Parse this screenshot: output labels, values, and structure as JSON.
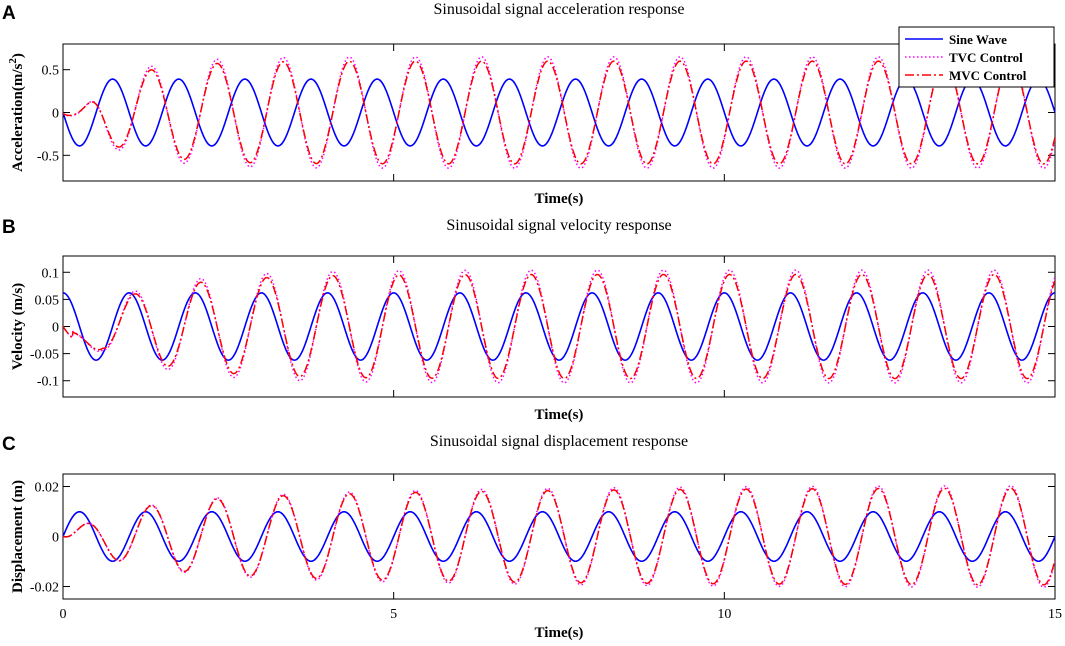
{
  "chart_data": [
    {
      "type": "line",
      "panel": "A",
      "title": "Sinusoidal signal acceleration response",
      "xlabel": "Time(s)",
      "ylabel": "Acceleration(m/s^2)",
      "xlim": [
        0,
        15
      ],
      "ylim": [
        -0.8,
        0.8
      ],
      "xticks": [
        0,
        5,
        10,
        15
      ],
      "xtick_labels": [],
      "yticks": [
        -0.5,
        0,
        0.5
      ],
      "ytick_labels": [
        "-0.5",
        "0",
        "0.5"
      ],
      "grid": false,
      "legend": "top-right",
      "series": [
        {
          "name": "Sine Wave",
          "color": "#0000ff",
          "style": "solid",
          "amplitude": 0.39,
          "frequency_hz": 1.0,
          "phase": "-sin"
        },
        {
          "name": "TVC Control",
          "color": "#ff00ff",
          "style": "dotted",
          "steady_amplitude": 0.65,
          "frequency_hz": 1.0,
          "start_dip": -0.17,
          "start_dip_time": 0.3
        },
        {
          "name": "MVC Control",
          "color": "#ff0000",
          "style": "dashdot",
          "steady_amplitude": 0.6,
          "frequency_hz": 1.0,
          "start_dip": -0.15,
          "start_dip_time": 0.3
        }
      ]
    },
    {
      "type": "line",
      "panel": "B",
      "title": "Sinusoidal signal velocity response",
      "xlabel": "Time(s)",
      "ylabel": "Velocity (m/s)",
      "xlim": [
        0,
        15
      ],
      "ylim": [
        -0.13,
        0.13
      ],
      "xticks": [
        0,
        5,
        10,
        15
      ],
      "xtick_labels": [],
      "yticks": [
        -0.1,
        -0.05,
        0,
        0.05,
        0.1
      ],
      "ytick_labels": [
        "-0.1",
        "-0.05",
        "0",
        "0.05",
        "0.1"
      ],
      "grid": false,
      "series": [
        {
          "name": "Sine Wave",
          "color": "#0000ff",
          "style": "solid",
          "amplitude": 0.062,
          "frequency_hz": 1.0,
          "phase": "cos"
        },
        {
          "name": "TVC Control",
          "color": "#ff00ff",
          "style": "dotted",
          "steady_amplitude": 0.104,
          "frequency_hz": 1.0
        },
        {
          "name": "MVC Control",
          "color": "#ff0000",
          "style": "dashdot",
          "steady_amplitude": 0.096,
          "frequency_hz": 1.0
        }
      ]
    },
    {
      "type": "line",
      "panel": "C",
      "title": "Sinusoidal signal displacement response",
      "xlabel": "Time(s)",
      "ylabel": "Displacement (m)",
      "xlim": [
        0,
        15
      ],
      "ylim": [
        -0.025,
        0.025
      ],
      "xticks": [
        0,
        5,
        10,
        15
      ],
      "xtick_labels": [
        "0",
        "5",
        "10",
        "15"
      ],
      "yticks": [
        -0.02,
        0,
        0.02
      ],
      "ytick_labels": [
        "-0.02",
        "0",
        "0.02"
      ],
      "grid": false,
      "series": [
        {
          "name": "Sine Wave",
          "color": "#0000ff",
          "style": "solid",
          "amplitude": 0.0099,
          "frequency_hz": 1.0,
          "phase": "sin"
        },
        {
          "name": "TVC Control",
          "color": "#ff00ff",
          "style": "dotted",
          "steady_amplitude": 0.0205,
          "frequency_hz": 1.0
        },
        {
          "name": "MVC Control",
          "color": "#ff0000",
          "style": "dashdot",
          "steady_amplitude": 0.0195,
          "frequency_hz": 1.0
        }
      ]
    }
  ]
}
